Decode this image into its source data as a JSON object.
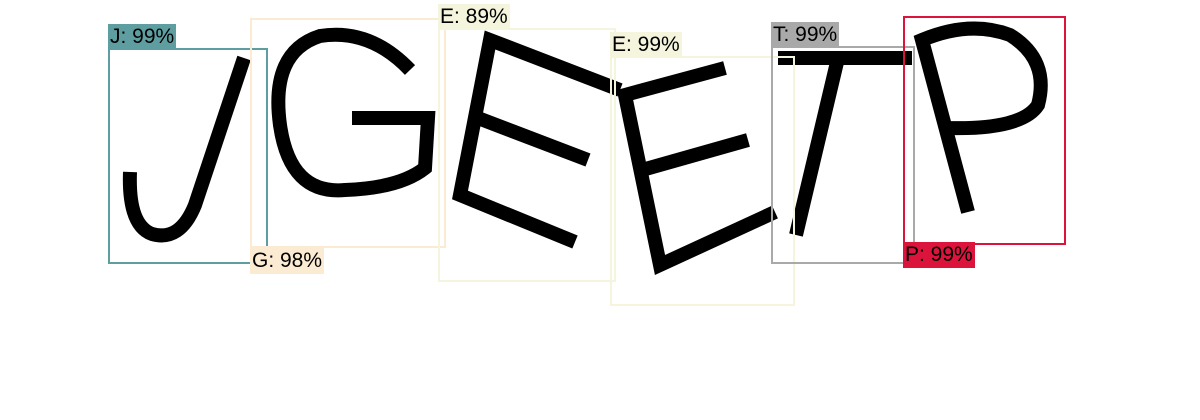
{
  "detections": [
    {
      "id": "j",
      "label": "J: 99%",
      "color": "#5f9ea0"
    },
    {
      "id": "g",
      "label": "G: 98%",
      "color": "#fbebd2"
    },
    {
      "id": "e1",
      "label": "E: 89%",
      "color": "#f4f5dc"
    },
    {
      "id": "e2",
      "label": "E: 99%",
      "color": "#f4f5dc"
    },
    {
      "id": "t",
      "label": "T: 99%",
      "color": "#a9a9a9"
    },
    {
      "id": "p",
      "label": "P: 99%",
      "color": "#dc143c"
    }
  ]
}
